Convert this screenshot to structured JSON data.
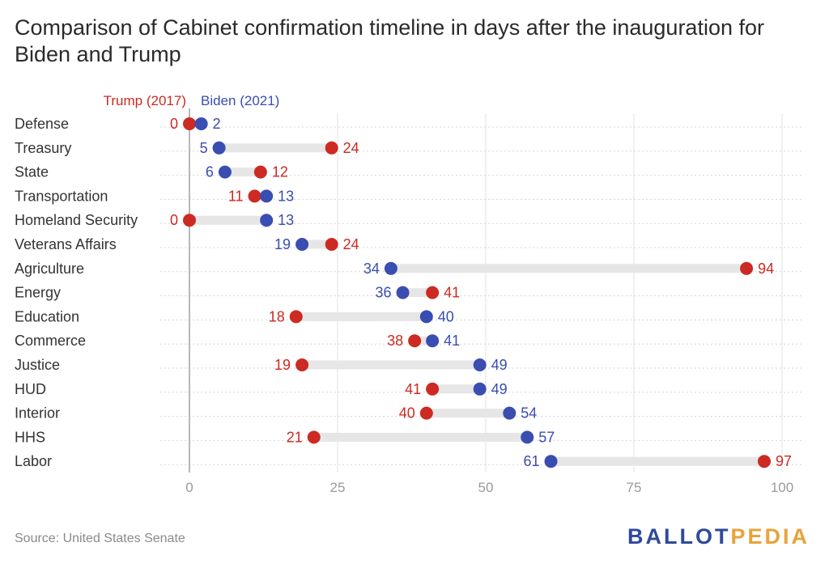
{
  "chart_data": {
    "type": "dumbbell",
    "title": "Comparison of Cabinet confirmation timeline in days after the inauguration for Biden and Trump",
    "categories": [
      "Defense",
      "Treasury",
      "State",
      "Transportation",
      "Homeland Security",
      "Veterans Affairs",
      "Agriculture",
      "Energy",
      "Education",
      "Commerce",
      "Justice",
      "HUD",
      "Interior",
      "HHS",
      "Labor"
    ],
    "series": [
      {
        "name": "Trump (2017)",
        "color": "#cc2a22",
        "values": [
          0,
          24,
          12,
          11,
          0,
          24,
          94,
          41,
          18,
          38,
          19,
          41,
          40,
          21,
          97
        ]
      },
      {
        "name": "Biden (2021)",
        "color": "#3a4db0",
        "values": [
          2,
          5,
          6,
          13,
          13,
          19,
          34,
          36,
          40,
          41,
          49,
          49,
          54,
          57,
          61
        ]
      }
    ],
    "x_ticks": [
      0,
      25,
      50,
      75,
      100
    ],
    "xlim": [
      0,
      100
    ],
    "grid": true,
    "legend_position": "top-left"
  },
  "footer": {
    "source": "Source: United States Senate",
    "logo_part1": "BALLOT",
    "logo_part2": "PEDIA"
  }
}
